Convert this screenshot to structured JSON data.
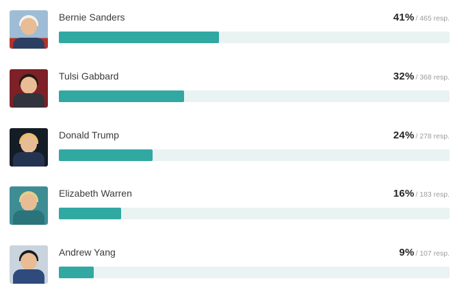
{
  "chart_data": {
    "type": "bar",
    "title": "",
    "orientation": "horizontal",
    "categories": [
      "Bernie Sanders",
      "Tulsi Gabbard",
      "Donald Trump",
      "Elizabeth Warren",
      "Andrew Yang"
    ],
    "values": [
      41,
      32,
      24,
      16,
      9
    ],
    "value_unit": "%",
    "responses": [
      465,
      368,
      278,
      183,
      107
    ],
    "xlim": [
      0,
      100
    ],
    "bar_color": "#31a8a1",
    "track_color": "#e9f3f2",
    "grid": false,
    "legend": false
  },
  "rows": [
    {
      "name": "Bernie Sanders",
      "percent": "41%",
      "resp": "/ 465 resp.",
      "value": 41
    },
    {
      "name": "Tulsi Gabbard",
      "percent": "32%",
      "resp": "/ 368 resp.",
      "value": 32
    },
    {
      "name": "Donald Trump",
      "percent": "24%",
      "resp": "/ 278 resp.",
      "value": 24
    },
    {
      "name": "Elizabeth Warren",
      "percent": "16%",
      "resp": "/ 183 resp.",
      "value": 16
    },
    {
      "name": "Andrew Yang",
      "percent": "9%",
      "resp": "/ 107 resp.",
      "value": 9
    }
  ]
}
